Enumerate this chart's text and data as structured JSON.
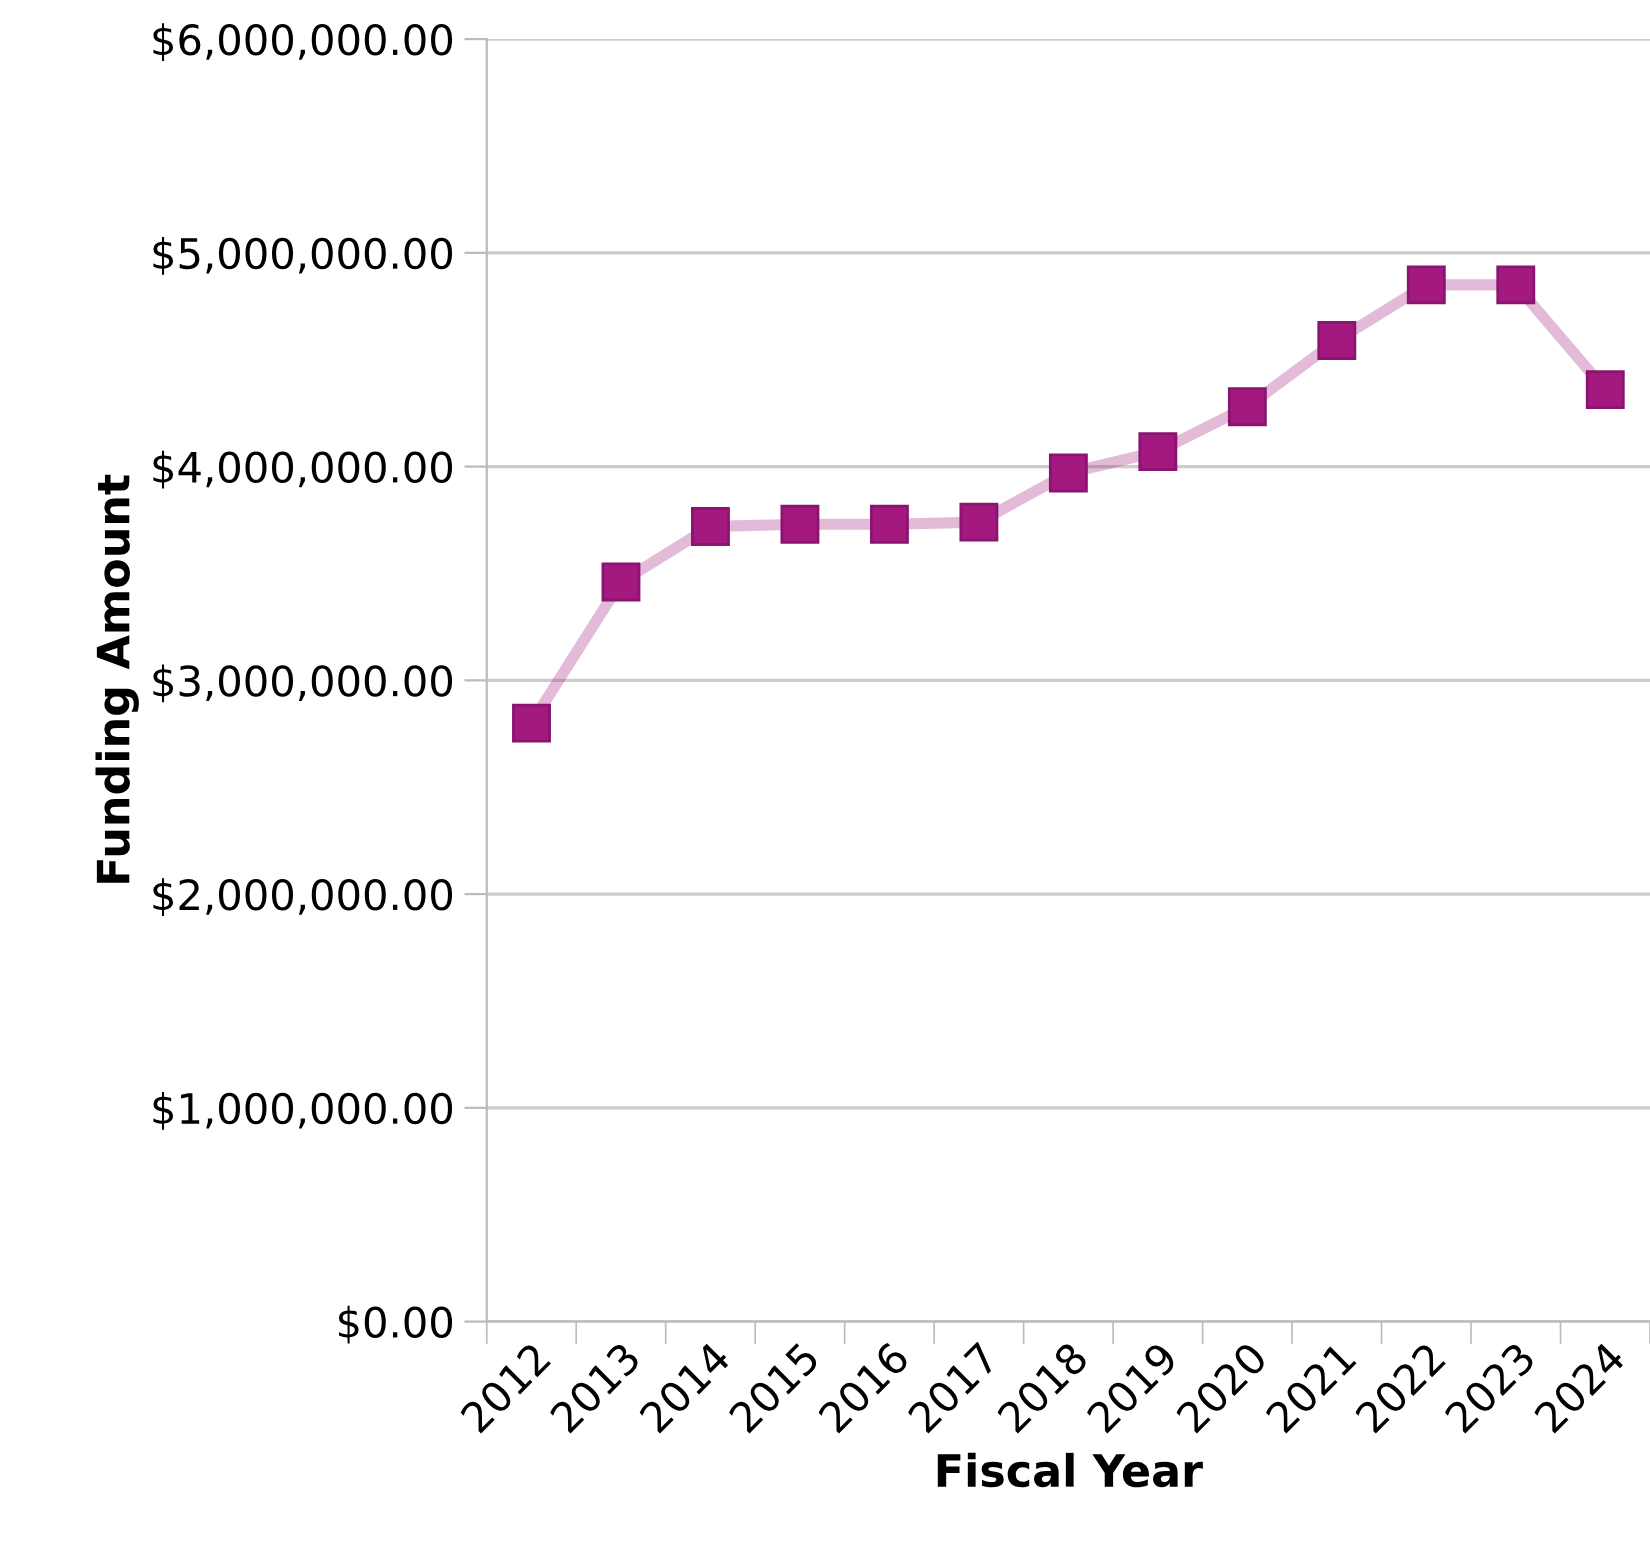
{
  "chart_data": {
    "type": "line",
    "xlabel": "Fiscal Year",
    "ylabel": "Funding Amount",
    "categories": [
      "2012",
      "2013",
      "2014",
      "2015",
      "2016",
      "2017",
      "2018",
      "2019",
      "2020",
      "2021",
      "2022",
      "2023",
      "2024"
    ],
    "series": [
      {
        "color": "#a3197f",
        "values": [
          2800000,
          3460000,
          3720000,
          3730000,
          3730000,
          3740000,
          3970000,
          4070000,
          4280000,
          4590000,
          4850000,
          4850000,
          4360000
        ]
      }
    ],
    "ylim": [
      0,
      6000000
    ],
    "yticks": [
      {
        "value": 0,
        "label": "$0.00"
      },
      {
        "value": 1000000,
        "label": "$1,000,000.00"
      },
      {
        "value": 2000000,
        "label": "$2,000,000.00"
      },
      {
        "value": 3000000,
        "label": "$3,000,000.00"
      },
      {
        "value": 4000000,
        "label": "$4,000,000.00"
      },
      {
        "value": 5000000,
        "label": "$5,000,000.00"
      },
      {
        "value": 6000000,
        "label": "$6,000,000.00"
      }
    ],
    "grid": "y",
    "marker": "square",
    "line_style": "solid",
    "legend": false
  }
}
